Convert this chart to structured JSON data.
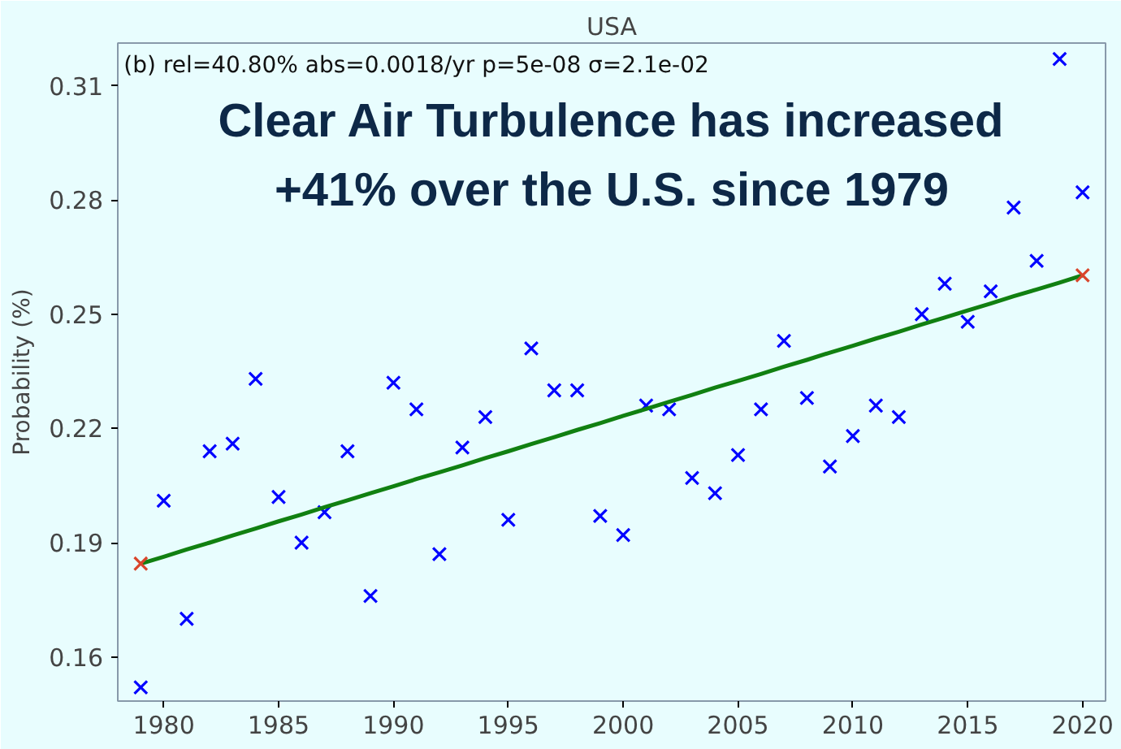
{
  "chart_data": {
    "type": "scatter",
    "title": "USA",
    "ylabel": "Probability (%)",
    "annotations": [
      "(b) rel=40.80%   abs=0.0018/yr   p=5e-08   σ=2.1e-02",
      "Clear Air Turbulence has increased",
      "+41% over the U.S. since 1979"
    ],
    "x": [
      1979,
      1980,
      1981,
      1982,
      1983,
      1984,
      1985,
      1986,
      1987,
      1988,
      1989,
      1990,
      1991,
      1992,
      1993,
      1994,
      1995,
      1996,
      1997,
      1998,
      1999,
      2000,
      2001,
      2002,
      2003,
      2004,
      2005,
      2006,
      2007,
      2008,
      2009,
      2010,
      2011,
      2012,
      2013,
      2014,
      2015,
      2016,
      2017,
      2018,
      2019,
      2020
    ],
    "series": [
      {
        "color": "#0000ff",
        "marker": "cross",
        "values": [
          0.152,
          0.201,
          0.17,
          0.214,
          0.216,
          0.233,
          0.202,
          0.19,
          0.198,
          0.214,
          0.176,
          0.232,
          0.225,
          0.187,
          0.215,
          0.223,
          0.196,
          0.241,
          0.23,
          0.23,
          0.197,
          0.192,
          0.226,
          0.225,
          0.207,
          0.203,
          0.213,
          0.225,
          0.243,
          0.228,
          0.21,
          0.218,
          0.226,
          0.223,
          0.25,
          0.258,
          0.248,
          0.256,
          0.278,
          0.264,
          0.317,
          0.282
        ]
      },
      {
        "type": "line",
        "color": "#118011",
        "line_style": "solid",
        "values": [
          0.1845,
          0.1863,
          0.1882,
          0.19,
          0.1919,
          0.1937,
          0.1956,
          0.1974,
          0.1993,
          0.2011,
          0.203,
          0.2048,
          0.2067,
          0.2085,
          0.2103,
          0.2122,
          0.214,
          0.2159,
          0.2177,
          0.2196,
          0.2214,
          0.2233,
          0.2251,
          0.227,
          0.2288,
          0.2307,
          0.2325,
          0.2343,
          0.2362,
          0.238,
          0.2399,
          0.2417,
          0.2436,
          0.2454,
          0.2473,
          0.2491,
          0.251,
          0.2528,
          0.2547,
          0.2565,
          0.2583,
          0.2602
        ]
      },
      {
        "type": "scatter",
        "color": "#d9452b",
        "marker": "cross",
        "values": [
          0.1845,
          null,
          null,
          null,
          null,
          null,
          null,
          null,
          null,
          null,
          null,
          null,
          null,
          null,
          null,
          null,
          null,
          null,
          null,
          null,
          null,
          null,
          null,
          null,
          null,
          null,
          null,
          null,
          null,
          null,
          null,
          null,
          null,
          null,
          null,
          null,
          null,
          null,
          null,
          null,
          null,
          0.2602
        ]
      }
    ],
    "xlim": [
      1978,
      2021
    ],
    "xticks": [
      1980,
      1985,
      1990,
      1995,
      2000,
      2005,
      2010,
      2015,
      2020
    ],
    "ylim": [
      0.1484,
      0.3212
    ],
    "yticks": [
      0.16,
      0.19,
      0.22,
      0.25,
      0.28,
      0.31
    ],
    "grid": false
  }
}
